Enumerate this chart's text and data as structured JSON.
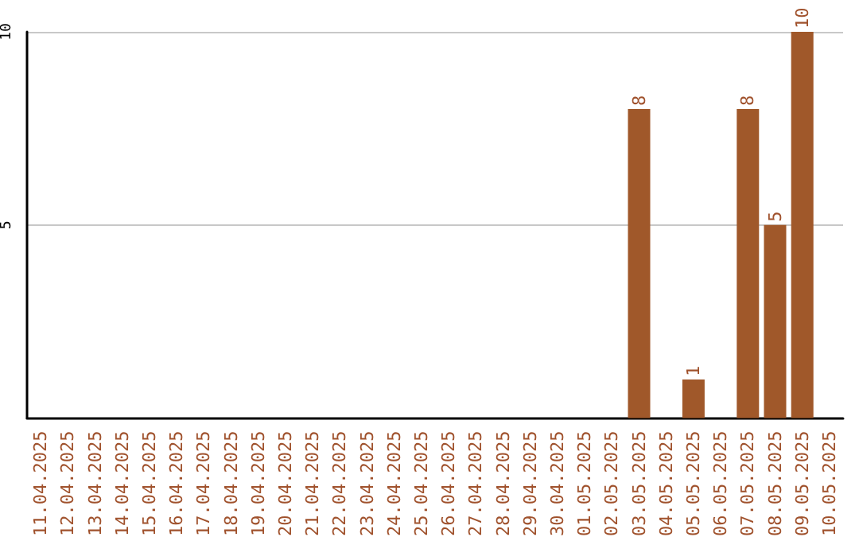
{
  "chart_data": {
    "type": "bar",
    "categories": [
      "11.04.2025",
      "12.04.2025",
      "13.04.2025",
      "14.04.2025",
      "15.04.2025",
      "16.04.2025",
      "17.04.2025",
      "18.04.2025",
      "19.04.2025",
      "20.04.2025",
      "21.04.2025",
      "22.04.2025",
      "23.04.2025",
      "24.04.2025",
      "25.04.2025",
      "26.04.2025",
      "27.04.2025",
      "28.04.2025",
      "29.04.2025",
      "30.04.2025",
      "01.05.2025",
      "02.05.2025",
      "03.05.2025",
      "04.05.2025",
      "05.05.2025",
      "06.05.2025",
      "07.05.2025",
      "08.05.2025",
      "09.05.2025",
      "10.05.2025"
    ],
    "values": [
      0,
      0,
      0,
      0,
      0,
      0,
      0,
      0,
      0,
      0,
      0,
      0,
      0,
      0,
      0,
      0,
      0,
      0,
      0,
      0,
      0,
      0,
      8,
      0,
      1,
      0,
      8,
      5,
      10,
      0
    ],
    "value_labels": [
      null,
      null,
      null,
      null,
      null,
      null,
      null,
      null,
      null,
      null,
      null,
      null,
      null,
      null,
      null,
      null,
      null,
      null,
      null,
      null,
      null,
      null,
      "8",
      null,
      "1",
      null,
      "8",
      "5",
      "10",
      null
    ],
    "color": "#a0582a",
    "ylim": [
      0,
      10
    ],
    "yticks": [
      5,
      10
    ],
    "grid": "y"
  }
}
